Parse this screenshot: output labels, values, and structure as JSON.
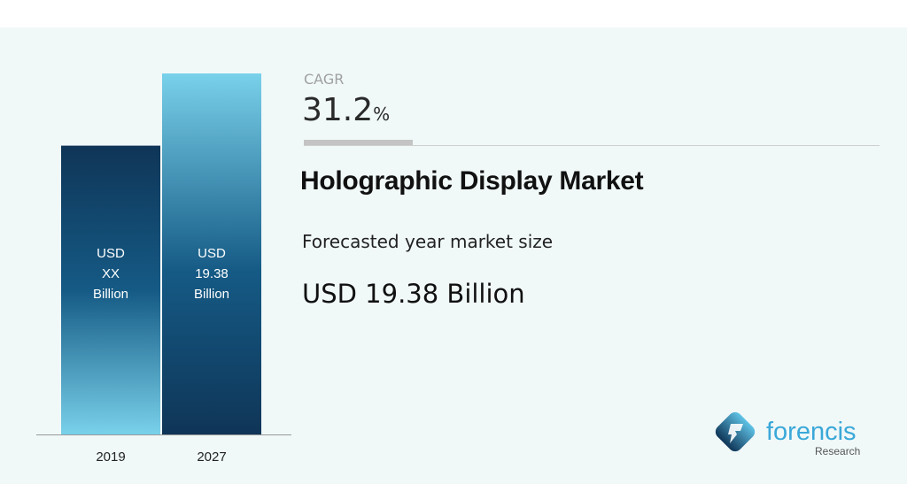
{
  "cagr": {
    "label": "CAGR",
    "value": "31.2",
    "unit": "%"
  },
  "title": "Holographic Display Market",
  "subtitle": "Forecasted year market size",
  "forecast_value": "USD 19.38 Billion",
  "logo": {
    "name": "forencis",
    "sub": "Research"
  },
  "colors": {
    "dark": "#0f3557",
    "mid": "#155a85",
    "light": "#79d1ea",
    "background": "#f0f8f8"
  },
  "chart_data": {
    "type": "bar",
    "categories": [
      "2019",
      "2027"
    ],
    "values": [
      null,
      19.38
    ],
    "data_labels": [
      [
        "USD",
        "XX",
        "Billion"
      ],
      [
        "USD",
        "19.38",
        "Billion"
      ]
    ],
    "unit": "USD Billion",
    "grid": false
  }
}
